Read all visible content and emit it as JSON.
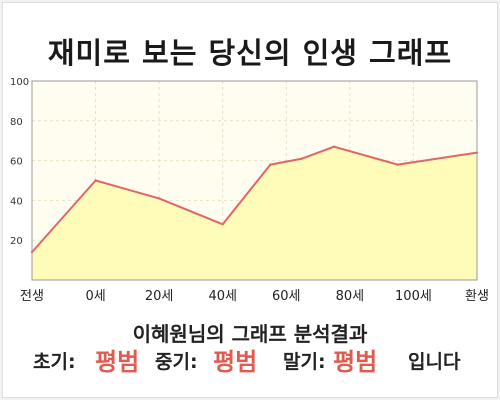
{
  "title": "재미로 보는 당신의 인생 그래프",
  "subtitle": "이혜원님의 그래프 분석결과",
  "result": {
    "early_label": "초기:",
    "early_value": "평범",
    "mid_label": "중기:",
    "mid_value": "평범",
    "late_label": "말기:",
    "late_value": "평범",
    "ending": "입니다"
  },
  "colors": {
    "line": "#e06666",
    "fill": "#fffbb8",
    "plot_bg": "#fffdf0",
    "accent": "#e05a4f"
  },
  "chart_data": {
    "type": "area",
    "title": "",
    "xlabel": "",
    "ylabel": "",
    "x_positions": [
      -20,
      0,
      20,
      40,
      60,
      80,
      100,
      120
    ],
    "x_ticks": [
      {
        "x": -20,
        "label": "전생"
      },
      {
        "x": 0,
        "label": "0세"
      },
      {
        "x": 20,
        "label": "20세"
      },
      {
        "x": 40,
        "label": "40세"
      },
      {
        "x": 60,
        "label": "60세"
      },
      {
        "x": 80,
        "label": "80세"
      },
      {
        "x": 100,
        "label": "100세"
      },
      {
        "x": 120,
        "label": "환생"
      }
    ],
    "points": [
      {
        "x": -20,
        "y": 14
      },
      {
        "x": 0,
        "y": 50
      },
      {
        "x": 20,
        "y": 41
      },
      {
        "x": 40,
        "y": 28
      },
      {
        "x": 55,
        "y": 58
      },
      {
        "x": 65,
        "y": 61
      },
      {
        "x": 75,
        "y": 67
      },
      {
        "x": 95,
        "y": 58
      },
      {
        "x": 120,
        "y": 64
      }
    ],
    "y_ticks": [
      20,
      40,
      60,
      80,
      100
    ],
    "xlim": [
      -20,
      120
    ],
    "ylim": [
      0,
      100
    ],
    "grid": true,
    "legend": "none"
  }
}
